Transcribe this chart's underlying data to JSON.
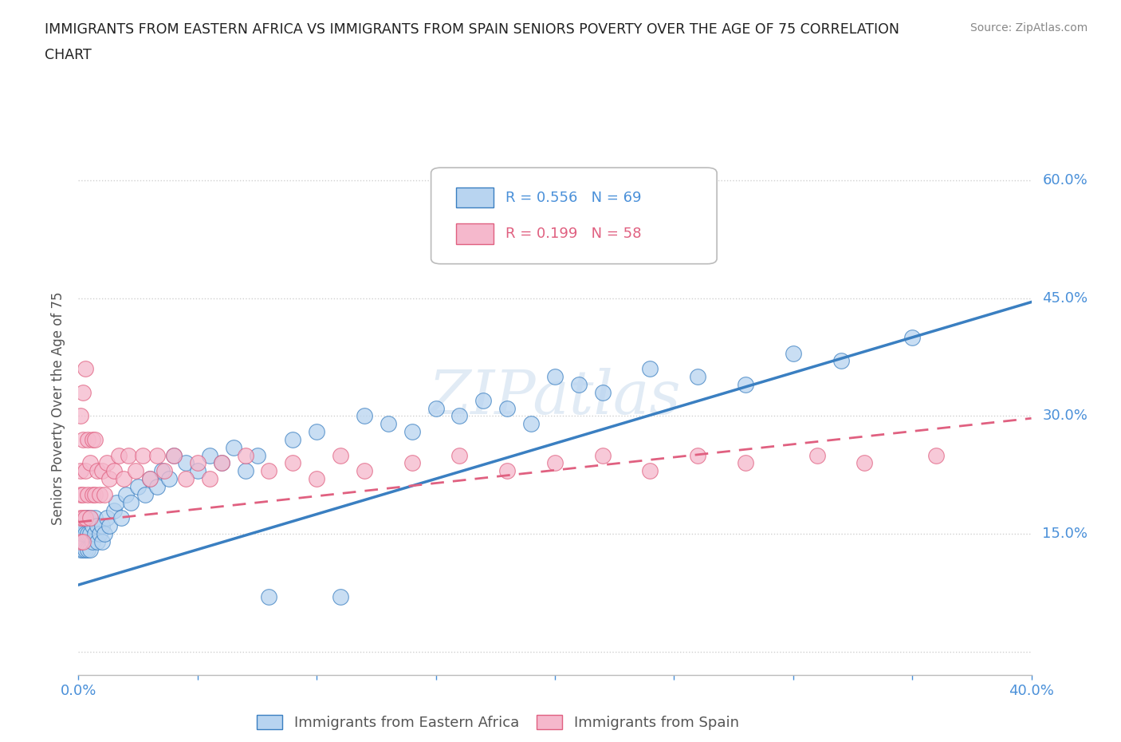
{
  "title_line1": "IMMIGRANTS FROM EASTERN AFRICA VS IMMIGRANTS FROM SPAIN SENIORS POVERTY OVER THE AGE OF 75 CORRELATION",
  "title_line2": "CHART",
  "ylabel": "Seniors Poverty Over the Age of 75",
  "source": "Source: ZipAtlas.com",
  "watermark": "ZIPatlas",
  "xlim": [
    0.0,
    0.4
  ],
  "ylim": [
    -0.03,
    0.65
  ],
  "ytick_vals": [
    0.0,
    0.15,
    0.3,
    0.45,
    0.6
  ],
  "ytick_labels": [
    "",
    "15.0%",
    "30.0%",
    "45.0%",
    "60.0%"
  ],
  "grid_color": "#d0d0d0",
  "background_color": "#ffffff",
  "series1_color": "#b8d4f0",
  "series2_color": "#f5b8cc",
  "line1_color": "#3a7fc1",
  "line2_color": "#e06080",
  "R1": 0.556,
  "N1": 69,
  "R2": 0.199,
  "N2": 58,
  "legend1_label": "Immigrants from Eastern Africa",
  "legend2_label": "Immigrants from Spain",
  "series1_x": [
    0.001,
    0.001,
    0.001,
    0.001,
    0.002,
    0.002,
    0.002,
    0.002,
    0.003,
    0.003,
    0.003,
    0.004,
    0.004,
    0.004,
    0.005,
    0.005,
    0.005,
    0.006,
    0.006,
    0.007,
    0.007,
    0.008,
    0.008,
    0.009,
    0.01,
    0.01,
    0.011,
    0.012,
    0.013,
    0.015,
    0.016,
    0.018,
    0.02,
    0.022,
    0.025,
    0.028,
    0.03,
    0.033,
    0.035,
    0.038,
    0.04,
    0.045,
    0.05,
    0.055,
    0.06,
    0.065,
    0.07,
    0.075,
    0.08,
    0.09,
    0.1,
    0.11,
    0.12,
    0.13,
    0.14,
    0.15,
    0.16,
    0.17,
    0.18,
    0.19,
    0.2,
    0.21,
    0.22,
    0.24,
    0.26,
    0.28,
    0.3,
    0.32,
    0.35
  ],
  "series1_y": [
    0.13,
    0.14,
    0.15,
    0.16,
    0.13,
    0.14,
    0.15,
    0.16,
    0.13,
    0.15,
    0.17,
    0.13,
    0.15,
    0.17,
    0.13,
    0.15,
    0.17,
    0.14,
    0.16,
    0.15,
    0.17,
    0.14,
    0.16,
    0.15,
    0.14,
    0.16,
    0.15,
    0.17,
    0.16,
    0.18,
    0.19,
    0.17,
    0.2,
    0.19,
    0.21,
    0.2,
    0.22,
    0.21,
    0.23,
    0.22,
    0.25,
    0.24,
    0.23,
    0.25,
    0.24,
    0.26,
    0.23,
    0.25,
    0.07,
    0.27,
    0.28,
    0.07,
    0.3,
    0.29,
    0.28,
    0.31,
    0.3,
    0.32,
    0.31,
    0.29,
    0.35,
    0.34,
    0.33,
    0.36,
    0.35,
    0.34,
    0.38,
    0.37,
    0.4
  ],
  "series2_x": [
    0.001,
    0.001,
    0.001,
    0.001,
    0.001,
    0.002,
    0.002,
    0.002,
    0.002,
    0.002,
    0.003,
    0.003,
    0.003,
    0.004,
    0.004,
    0.005,
    0.005,
    0.006,
    0.006,
    0.007,
    0.007,
    0.008,
    0.009,
    0.01,
    0.011,
    0.012,
    0.013,
    0.015,
    0.017,
    0.019,
    0.021,
    0.024,
    0.027,
    0.03,
    0.033,
    0.036,
    0.04,
    0.045,
    0.05,
    0.055,
    0.06,
    0.07,
    0.08,
    0.09,
    0.1,
    0.11,
    0.12,
    0.14,
    0.16,
    0.18,
    0.2,
    0.22,
    0.24,
    0.26,
    0.28,
    0.31,
    0.33,
    0.36
  ],
  "series2_y": [
    0.14,
    0.17,
    0.2,
    0.23,
    0.3,
    0.14,
    0.17,
    0.2,
    0.27,
    0.33,
    0.17,
    0.23,
    0.36,
    0.2,
    0.27,
    0.17,
    0.24,
    0.2,
    0.27,
    0.2,
    0.27,
    0.23,
    0.2,
    0.23,
    0.2,
    0.24,
    0.22,
    0.23,
    0.25,
    0.22,
    0.25,
    0.23,
    0.25,
    0.22,
    0.25,
    0.23,
    0.25,
    0.22,
    0.24,
    0.22,
    0.24,
    0.25,
    0.23,
    0.24,
    0.22,
    0.25,
    0.23,
    0.24,
    0.25,
    0.23,
    0.24,
    0.25,
    0.23,
    0.25,
    0.24,
    0.25,
    0.24,
    0.25
  ],
  "line1_intercept": 0.085,
  "line1_slope": 0.9,
  "line2_intercept": 0.165,
  "line2_slope": 0.33
}
